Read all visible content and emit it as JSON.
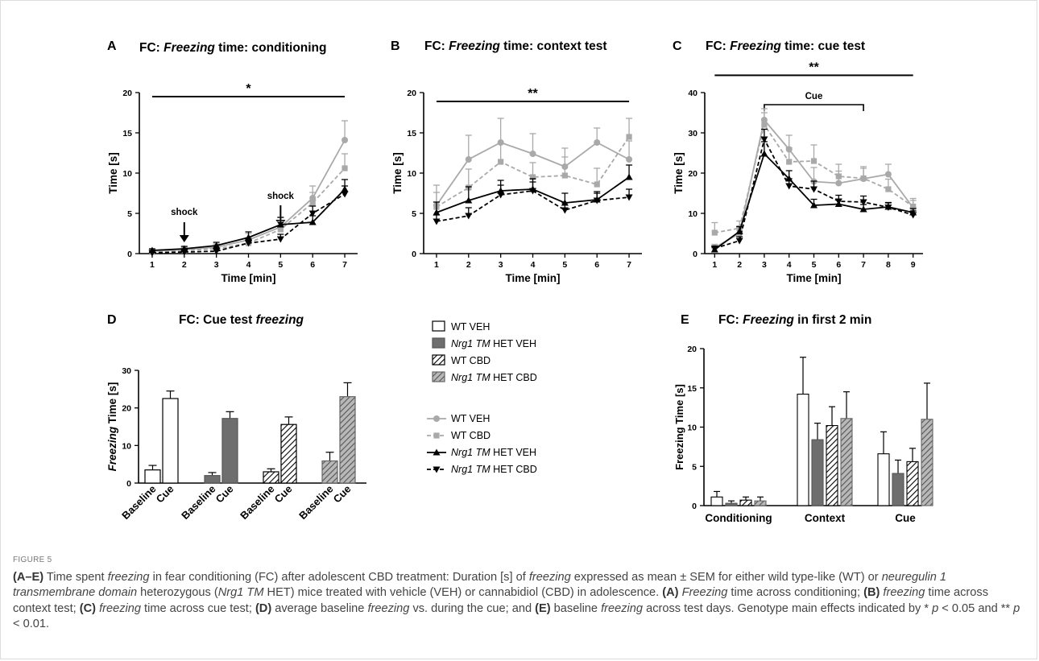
{
  "figure_label": "FIGURE 5",
  "caption_parts": [
    {
      "t": "(A–E)",
      "s": "b"
    },
    {
      "t": " Time spent ",
      "s": ""
    },
    {
      "t": "freezing",
      "s": "i"
    },
    {
      "t": " in fear conditioning (FC) after adolescent CBD treatment: Duration [s] of ",
      "s": ""
    },
    {
      "t": "freezing",
      "s": "i"
    },
    {
      "t": " expressed as mean ± SEM for either wild type-like (WT) or ",
      "s": ""
    },
    {
      "t": "neuregulin 1 transmembrane domain",
      "s": "i"
    },
    {
      "t": " heterozygous (",
      "s": ""
    },
    {
      "t": "Nrg1 TM",
      "s": "i"
    },
    {
      "t": " HET) mice treated with vehicle (VEH) or cannabidiol (CBD) in adolescence. ",
      "s": ""
    },
    {
      "t": "(A)",
      "s": "b"
    },
    {
      "t": " ",
      "s": ""
    },
    {
      "t": "Freezing",
      "s": "i"
    },
    {
      "t": " time across conditioning; ",
      "s": ""
    },
    {
      "t": "(B)",
      "s": "b"
    },
    {
      "t": " ",
      "s": ""
    },
    {
      "t": "freezing",
      "s": "i"
    },
    {
      "t": " time across context test; ",
      "s": ""
    },
    {
      "t": "(C)",
      "s": "b"
    },
    {
      "t": " ",
      "s": ""
    },
    {
      "t": "freezing",
      "s": "i"
    },
    {
      "t": " time across cue test; ",
      "s": ""
    },
    {
      "t": "(D)",
      "s": "b"
    },
    {
      "t": " average baseline ",
      "s": ""
    },
    {
      "t": "freezing",
      "s": "i"
    },
    {
      "t": " vs. during the cue; and ",
      "s": ""
    },
    {
      "t": "(E)",
      "s": "b"
    },
    {
      "t": " baseline ",
      "s": ""
    },
    {
      "t": "freezing",
      "s": "i"
    },
    {
      "t": " across test days. Genotype main effects indicated by * ",
      "s": ""
    },
    {
      "t": "p",
      "s": "i"
    },
    {
      "t": " < 0.05 and ** ",
      "s": ""
    },
    {
      "t": "p",
      "s": "i"
    },
    {
      "t": " < 0.01.",
      "s": ""
    }
  ],
  "colors": {
    "wt": "#a9a9a9",
    "het": "#000000",
    "het_bar": "#6e6e6e",
    "wt_cbd_bar": "#a8a8a8"
  },
  "bar_legend": [
    {
      "parts": [
        {
          "t": "WT VEH",
          "i": false
        }
      ],
      "fill": "open"
    },
    {
      "parts": [
        {
          "t": "Nrg1 TM",
          "i": true
        },
        {
          "t": " HET VEH",
          "i": false
        }
      ],
      "fill": "solid"
    },
    {
      "parts": [
        {
          "t": "WT CBD",
          "i": false
        }
      ],
      "fill": "hatch"
    },
    {
      "parts": [
        {
          "t": "Nrg1 TM",
          "i": true
        },
        {
          "t": " HET CBD",
          "i": false
        }
      ],
      "fill": "hatchgrey"
    }
  ],
  "line_legend": [
    {
      "parts": [
        {
          "t": "WT VEH",
          "i": false
        }
      ],
      "color": "wt",
      "dash": false,
      "marker": "circle"
    },
    {
      "parts": [
        {
          "t": "WT CBD",
          "i": false
        }
      ],
      "color": "wt",
      "dash": true,
      "marker": "square"
    },
    {
      "parts": [
        {
          "t": "Nrg1 TM",
          "i": true
        },
        {
          "t": " HET VEH",
          "i": false
        }
      ],
      "color": "het",
      "dash": false,
      "marker": "tri-up"
    },
    {
      "parts": [
        {
          "t": "Nrg1 TM",
          "i": true
        },
        {
          "t": " HET CBD",
          "i": false
        }
      ],
      "color": "het",
      "dash": true,
      "marker": "tri-down"
    }
  ],
  "chart_data": [
    {
      "panel": "A",
      "type": "line",
      "title_parts": [
        {
          "t": "FC: ",
          "i": false
        },
        {
          "t": "Freezing",
          "i": true
        },
        {
          "t": " time: conditioning",
          "i": false
        }
      ],
      "xlabel": "Time [min]",
      "ylabel": "Time [s]",
      "x": [
        1,
        2,
        3,
        4,
        5,
        6,
        7
      ],
      "xlim": [
        0.6,
        7.4
      ],
      "ylim": [
        0,
        20
      ],
      "yticks": [
        0,
        5,
        10,
        15,
        20
      ],
      "significance": {
        "label": "*",
        "from": 1,
        "to": 7,
        "y": 19.5
      },
      "annotations": [
        {
          "text": "shock",
          "x": 2,
          "label_y": 4.8,
          "arrow_from": 3.9,
          "arrow_to": 1.4
        },
        {
          "text": "shock",
          "x": 5,
          "label_y": 6.8,
          "arrow_from": 6.0,
          "arrow_to": 3.3
        }
      ],
      "series": [
        {
          "name": "WT VEH",
          "values": [
            0.3,
            0.5,
            0.8,
            1.7,
            3.3,
            6.9,
            14.1
          ],
          "err": [
            0.2,
            0.3,
            0.4,
            0.8,
            1.2,
            1.5,
            2.4
          ]
        },
        {
          "name": "WT CBD",
          "values": [
            0.2,
            0.4,
            0.6,
            1.3,
            3.0,
            6.3,
            10.6
          ],
          "err": [
            0.2,
            0.3,
            0.4,
            0.7,
            1.0,
            1.3,
            1.8
          ]
        },
        {
          "name": "Nrg1 TM HET VEH",
          "values": [
            0.4,
            0.6,
            1.0,
            2.0,
            3.6,
            3.9,
            8.0
          ],
          "err": [
            0.2,
            0.3,
            0.4,
            0.7,
            0.9,
            0.8,
            1.2
          ]
        },
        {
          "name": "Nrg1 TM HET CBD",
          "values": [
            0.1,
            0.2,
            0.3,
            1.3,
            1.8,
            5.0,
            7.4
          ],
          "err": [
            0.1,
            0.2,
            0.3,
            0.5,
            0.6,
            0.9,
            1.0
          ]
        }
      ]
    },
    {
      "panel": "B",
      "type": "line",
      "title_parts": [
        {
          "t": "FC: ",
          "i": false
        },
        {
          "t": "Freezing",
          "i": true
        },
        {
          "t": " time: context test",
          "i": false
        }
      ],
      "xlabel": "Time [min]",
      "ylabel": "Time [s]",
      "x": [
        1,
        2,
        3,
        4,
        5,
        6,
        7
      ],
      "xlim": [
        0.6,
        7.4
      ],
      "ylim": [
        0,
        20
      ],
      "yticks": [
        0,
        5,
        10,
        15,
        20
      ],
      "significance": {
        "label": "**",
        "from": 1,
        "to": 7,
        "y": 18.9
      },
      "series": [
        {
          "name": "WT VEH",
          "values": [
            6.0,
            11.7,
            13.8,
            12.4,
            10.8,
            13.8,
            11.7
          ],
          "err": [
            2.5,
            3.0,
            3.0,
            2.5,
            2.3,
            1.8,
            2.3
          ]
        },
        {
          "name": "WT CBD",
          "values": [
            5.8,
            8.2,
            11.4,
            9.5,
            9.7,
            8.6,
            14.5
          ],
          "err": [
            1.8,
            2.3,
            2.3,
            1.8,
            2.3,
            2.0,
            2.3
          ]
        },
        {
          "name": "Nrg1 TM HET VEH",
          "values": [
            5.1,
            6.6,
            7.8,
            8.0,
            6.3,
            6.7,
            9.5
          ],
          "err": [
            1.3,
            1.7,
            1.3,
            1.3,
            1.2,
            1.0,
            1.5
          ]
        },
        {
          "name": "Nrg1 TM HET CBD",
          "values": [
            4.0,
            4.7,
            7.3,
            7.8,
            5.4,
            6.6,
            7.0
          ],
          "err": [
            0.8,
            1.0,
            1.2,
            1.1,
            0.9,
            0.9,
            1.0
          ]
        }
      ]
    },
    {
      "panel": "C",
      "type": "line",
      "title_parts": [
        {
          "t": "FC: ",
          "i": false
        },
        {
          "t": "Freezing",
          "i": true
        },
        {
          "t": " time: cue test",
          "i": false
        }
      ],
      "xlabel": "Time [min]",
      "ylabel": "Time [s]",
      "x": [
        1,
        2,
        3,
        4,
        5,
        6,
        7,
        8,
        9
      ],
      "xlim": [
        0.6,
        9.4
      ],
      "ylim": [
        0,
        40
      ],
      "yticks": [
        0,
        10,
        20,
        30,
        40
      ],
      "significance": {
        "label": "**",
        "from": 1,
        "to": 9,
        "y": 44.3
      },
      "bracket": {
        "label": "Cue",
        "from": 3,
        "to": 7,
        "y": 37.0
      },
      "series": [
        {
          "name": "WT VEH",
          "values": [
            1.5,
            5.0,
            33.2,
            25.9,
            17.9,
            17.5,
            18.6,
            19.7,
            11.4
          ],
          "err": [
            0.8,
            1.5,
            2.8,
            3.5,
            3.5,
            3.0,
            3.0,
            2.5,
            1.8
          ]
        },
        {
          "name": "WT CBD",
          "values": [
            5.2,
            6.3,
            32.0,
            22.8,
            23.0,
            19.2,
            18.7,
            16.0,
            11.7
          ],
          "err": [
            2.5,
            1.8,
            3.0,
            3.5,
            4.0,
            3.0,
            2.5,
            2.5,
            2.0
          ]
        },
        {
          "name": "Nrg1 TM HET VEH",
          "values": [
            1.0,
            5.5,
            24.8,
            18.6,
            12.0,
            12.3,
            11.0,
            11.6,
            10.2
          ],
          "err": [
            0.6,
            1.2,
            3.0,
            2.0,
            1.5,
            1.2,
            1.2,
            1.0,
            1.0
          ]
        },
        {
          "name": "Nrg1 TM HET CBD",
          "values": [
            1.3,
            3.2,
            28.4,
            16.8,
            16.0,
            13.0,
            12.8,
            11.5,
            9.6
          ],
          "err": [
            0.6,
            1.0,
            2.5,
            1.8,
            2.0,
            1.5,
            1.5,
            1.2,
            1.0
          ]
        }
      ]
    },
    {
      "panel": "D",
      "type": "bar",
      "title_parts": [
        {
          "t": "FC: Cue test ",
          "i": false
        },
        {
          "t": "freezing",
          "i": true
        }
      ],
      "ylabel_parts": [
        {
          "t": "Freezing",
          "i": true
        },
        {
          "t": " Time [s]",
          "i": false
        }
      ],
      "ylim": [
        0,
        30
      ],
      "yticks": [
        0,
        10,
        20,
        30
      ],
      "categories": [
        "Baseline",
        "Cue",
        "Baseline",
        "Cue",
        "Baseline",
        "Cue",
        "Baseline",
        "Cue"
      ],
      "groups": [
        {
          "name": "WT VEH",
          "values": [
            3.5,
            22.5
          ],
          "err": [
            1.2,
            2.0
          ]
        },
        {
          "name": "Nrg1 TM HET VEH",
          "values": [
            2.0,
            17.2
          ],
          "err": [
            0.8,
            1.8
          ]
        },
        {
          "name": "WT CBD",
          "values": [
            3.0,
            15.6
          ],
          "err": [
            0.8,
            2.0
          ]
        },
        {
          "name": "Nrg1 TM HET CBD",
          "values": [
            5.9,
            23.0
          ],
          "err": [
            2.3,
            3.7
          ]
        }
      ]
    },
    {
      "panel": "E",
      "type": "bar",
      "title_parts": [
        {
          "t": "FC: ",
          "i": false
        },
        {
          "t": "Freezing",
          "i": true
        },
        {
          "t": " in first 2 min",
          "i": false
        }
      ],
      "ylabel": "Freezing Time [s]",
      "ylim": [
        0,
        20
      ],
      "yticks": [
        0,
        5,
        10,
        15,
        20
      ],
      "categories": [
        "Conditioning",
        "Context",
        "Cue"
      ],
      "series": [
        {
          "name": "WT VEH",
          "values": [
            1.1,
            14.2,
            6.6
          ],
          "err": [
            0.7,
            4.7,
            2.8
          ]
        },
        {
          "name": "Nrg1 TM HET VEH",
          "values": [
            0.3,
            8.4,
            4.1
          ],
          "err": [
            0.3,
            2.1,
            1.7
          ]
        },
        {
          "name": "WT CBD",
          "values": [
            0.7,
            10.2,
            5.6
          ],
          "err": [
            0.4,
            2.4,
            1.7
          ]
        },
        {
          "name": "Nrg1 TM HET CBD",
          "values": [
            0.6,
            11.1,
            11.0
          ],
          "err": [
            0.5,
            3.4,
            4.6
          ]
        }
      ]
    }
  ]
}
